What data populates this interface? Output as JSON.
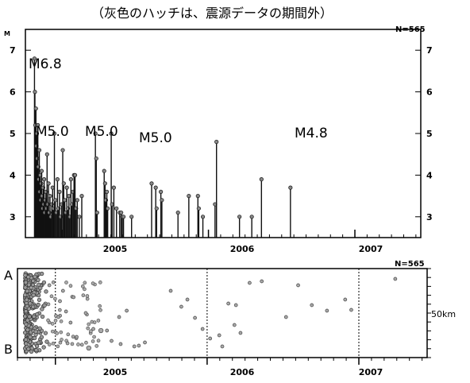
{
  "chart_data": [
    {
      "type": "stem",
      "subtitle": "（灰色のハッチは、震源データの期間外）",
      "n_label": "N=565",
      "ylabel": "M",
      "ylim": [
        2.5,
        7.5
      ],
      "yticks": [
        3,
        4,
        5,
        6,
        7
      ],
      "xlim": [
        2004.75,
        2007.45
      ],
      "year_labels": [
        {
          "label": "2005",
          "x": 2005.5
        },
        {
          "label": "2006",
          "x": 2006.5
        },
        {
          "label": "2007",
          "x": 2007.5
        }
      ],
      "year_boundaries": [
        2005,
        2006,
        2007
      ],
      "annotations": [
        {
          "text": "M6.8",
          "x": 2004.82,
          "y": 6.8
        },
        {
          "text": "M5.0",
          "x": 2004.86,
          "y": 5.0
        },
        {
          "text": "M5.0",
          "x": 2005.0,
          "y": 5.0
        },
        {
          "text": "M5.0",
          "x": 2005.19,
          "y": 5.0
        },
        {
          "text": "M4.8",
          "x": 2006.73,
          "y": 4.8
        }
      ],
      "events": [
        {
          "t": 2004.812,
          "m": 6.8
        },
        {
          "t": 2004.815,
          "m": 6.0
        },
        {
          "t": 2004.818,
          "m": 5.2
        },
        {
          "t": 2004.822,
          "m": 5.6
        },
        {
          "t": 2004.826,
          "m": 4.7
        },
        {
          "t": 2004.829,
          "m": 5.0
        },
        {
          "t": 2004.832,
          "m": 4.4
        },
        {
          "t": 2004.835,
          "m": 5.2
        },
        {
          "t": 2004.838,
          "m": 4.2
        },
        {
          "t": 2004.841,
          "m": 3.9
        },
        {
          "t": 2004.845,
          "m": 4.6
        },
        {
          "t": 2004.848,
          "m": 3.6
        },
        {
          "t": 2004.851,
          "m": 4.0
        },
        {
          "t": 2004.855,
          "m": 3.4
        },
        {
          "t": 2004.858,
          "m": 3.8
        },
        {
          "t": 2004.861,
          "m": 4.1
        },
        {
          "t": 2004.864,
          "m": 3.5
        },
        {
          "t": 2004.868,
          "m": 3.2
        },
        {
          "t": 2004.871,
          "m": 3.7
        },
        {
          "t": 2004.875,
          "m": 3.3
        },
        {
          "t": 2004.878,
          "m": 3.9
        },
        {
          "t": 2004.882,
          "m": 3.1
        },
        {
          "t": 2004.886,
          "m": 3.4
        },
        {
          "t": 2004.89,
          "m": 3.6
        },
        {
          "t": 2004.894,
          "m": 3.2
        },
        {
          "t": 2004.898,
          "m": 4.5
        },
        {
          "t": 2004.903,
          "m": 3.3
        },
        {
          "t": 2004.908,
          "m": 3.8
        },
        {
          "t": 2004.913,
          "m": 3.1
        },
        {
          "t": 2004.918,
          "m": 3.5
        },
        {
          "t": 2004.924,
          "m": 3.0
        },
        {
          "t": 2004.93,
          "m": 3.3
        },
        {
          "t": 2004.936,
          "m": 3.7
        },
        {
          "t": 2004.942,
          "m": 3.2
        },
        {
          "t": 2004.948,
          "m": 5.0
        },
        {
          "t": 2004.955,
          "m": 3.4
        },
        {
          "t": 2004.962,
          "m": 3.1
        },
        {
          "t": 2004.969,
          "m": 3.9
        },
        {
          "t": 2004.976,
          "m": 3.2
        },
        {
          "t": 2004.983,
          "m": 3.6
        },
        {
          "t": 2004.99,
          "m": 3.0
        },
        {
          "t": 2004.997,
          "m": 3.3
        },
        {
          "t": 2005.005,
          "m": 4.6
        },
        {
          "t": 2005.012,
          "m": 3.8
        },
        {
          "t": 2005.019,
          "m": 3.4
        },
        {
          "t": 2005.026,
          "m": 3.1
        },
        {
          "t": 2005.033,
          "m": 3.7
        },
        {
          "t": 2005.04,
          "m": 3.2
        },
        {
          "t": 2005.047,
          "m": 3.5
        },
        {
          "t": 2005.054,
          "m": 3.0
        },
        {
          "t": 2005.061,
          "m": 3.9
        },
        {
          "t": 2005.068,
          "m": 3.3
        },
        {
          "t": 2005.075,
          "m": 3.6
        },
        {
          "t": 2005.082,
          "m": 4.0
        },
        {
          "t": 2005.089,
          "m": 4.0
        },
        {
          "t": 2005.096,
          "m": 3.2
        },
        {
          "t": 2005.104,
          "m": 3.4
        },
        {
          "t": 2005.118,
          "m": 3.0
        },
        {
          "t": 2005.135,
          "m": 3.5
        },
        {
          "t": 2005.228,
          "m": 5.0
        },
        {
          "t": 2005.234,
          "m": 4.4
        },
        {
          "t": 2005.24,
          "m": 3.1
        },
        {
          "t": 2005.288,
          "m": 4.1
        },
        {
          "t": 2005.294,
          "m": 3.8
        },
        {
          "t": 2005.3,
          "m": 3.4
        },
        {
          "t": 2005.306,
          "m": 3.6
        },
        {
          "t": 2005.312,
          "m": 3.2
        },
        {
          "t": 2005.336,
          "m": 5.0
        },
        {
          "t": 2005.342,
          "m": 3.3
        },
        {
          "t": 2005.354,
          "m": 3.7
        },
        {
          "t": 2005.372,
          "m": 3.2
        },
        {
          "t": 2005.394,
          "m": 3.1
        },
        {
          "t": 2005.404,
          "m": 3.1
        },
        {
          "t": 2005.412,
          "m": 3.0
        },
        {
          "t": 2005.42,
          "m": 3.0
        },
        {
          "t": 2005.475,
          "m": 3.0
        },
        {
          "t": 2005.612,
          "m": 3.8
        },
        {
          "t": 2005.64,
          "m": 3.7
        },
        {
          "t": 2005.646,
          "m": 3.2
        },
        {
          "t": 2005.675,
          "m": 3.6
        },
        {
          "t": 2005.682,
          "m": 3.4
        },
        {
          "t": 2005.792,
          "m": 3.1
        },
        {
          "t": 2005.866,
          "m": 3.5
        },
        {
          "t": 2005.928,
          "m": 3.5
        },
        {
          "t": 2005.934,
          "m": 3.2
        },
        {
          "t": 2005.962,
          "m": 3.0
        },
        {
          "t": 2006.045,
          "m": 3.3
        },
        {
          "t": 2006.055,
          "m": 4.8
        },
        {
          "t": 2006.212,
          "m": 3.0
        },
        {
          "t": 2006.296,
          "m": 3.0
        },
        {
          "t": 2006.362,
          "m": 3.9
        },
        {
          "t": 2006.56,
          "m": 3.7
        }
      ]
    },
    {
      "type": "scatter",
      "n_label": "N=565",
      "y_left_labels": [
        "A",
        "B"
      ],
      "y_scale_label": "50km",
      "xlim": [
        2004.75,
        2007.45
      ],
      "ylim": [
        0,
        1
      ],
      "year_labels": [
        {
          "label": "2005",
          "x": 2005.5
        },
        {
          "label": "2006",
          "x": 2006.5
        },
        {
          "label": "2007",
          "x": 2007.5
        }
      ],
      "year_boundaries": [
        2005,
        2006,
        2007
      ],
      "points": [
        {
          "t": 2004.84,
          "d": 0.18
        },
        {
          "t": 2004.96,
          "d": 0.15
        },
        {
          "t": 2005.03,
          "d": 0.35
        },
        {
          "t": 2005.05,
          "d": 0.22
        },
        {
          "t": 2005.02,
          "d": 0.55
        },
        {
          "t": 2005.07,
          "d": 0.48
        },
        {
          "t": 2005.12,
          "d": 0.3
        },
        {
          "t": 2005.1,
          "d": 0.62
        },
        {
          "t": 2005.14,
          "d": 0.8
        },
        {
          "t": 2005.08,
          "d": 0.88
        },
        {
          "t": 2005.2,
          "d": 0.5
        },
        {
          "t": 2005.25,
          "d": 0.7
        },
        {
          "t": 2005.3,
          "d": 0.72,
          "r": 2.8
        },
        {
          "t": 2005.34,
          "d": 0.72
        },
        {
          "t": 2005.42,
          "d": 0.55
        },
        {
          "t": 2005.47,
          "d": 0.47
        },
        {
          "t": 2005.52,
          "d": 0.92
        },
        {
          "t": 2005.55,
          "d": 0.91
        },
        {
          "t": 2005.59,
          "d": 0.87
        },
        {
          "t": 2005.22,
          "d": 0.94,
          "r": 2.8
        },
        {
          "t": 2005.37,
          "d": 0.85
        },
        {
          "t": 2005.43,
          "d": 0.89
        },
        {
          "t": 2005.76,
          "d": 0.22
        },
        {
          "t": 2005.83,
          "d": 0.42
        },
        {
          "t": 2005.87,
          "d": 0.33
        },
        {
          "t": 2005.92,
          "d": 0.56
        },
        {
          "t": 2005.97,
          "d": 0.7
        },
        {
          "t": 2006.02,
          "d": 0.82
        },
        {
          "t": 2006.08,
          "d": 0.78
        },
        {
          "t": 2006.14,
          "d": 0.38
        },
        {
          "t": 2006.19,
          "d": 0.4
        },
        {
          "t": 2006.22,
          "d": 0.75
        },
        {
          "t": 2006.36,
          "d": 0.1
        },
        {
          "t": 2006.6,
          "d": 0.15
        },
        {
          "t": 2006.69,
          "d": 0.4
        },
        {
          "t": 2006.79,
          "d": 0.47
        },
        {
          "t": 2006.91,
          "d": 0.33
        },
        {
          "t": 2007.24,
          "d": 0.07
        },
        {
          "t": 2006.1,
          "d": 0.92
        },
        {
          "t": 2006.18,
          "d": 0.65
        },
        {
          "t": 2006.28,
          "d": 0.12
        },
        {
          "t": 2006.52,
          "d": 0.55
        },
        {
          "t": 2006.95,
          "d": 0.46
        }
      ]
    }
  ]
}
